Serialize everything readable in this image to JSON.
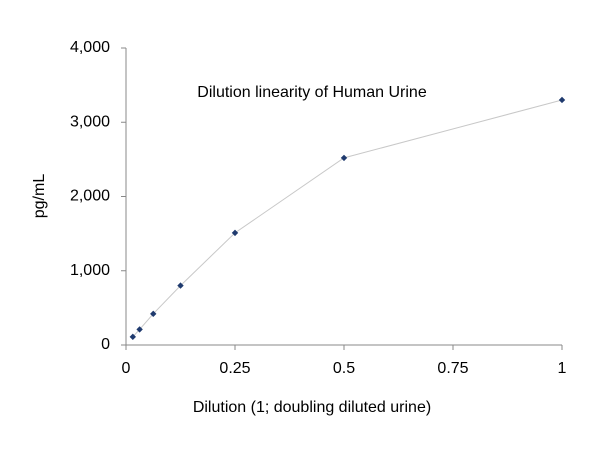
{
  "chart_data": {
    "type": "line",
    "title": "Dilution linearity of Human Urine",
    "x_label": "Dilution (1; doubling diluted urine)",
    "y_label": "pg/mL",
    "x": [
      0.015625,
      0.03125,
      0.0625,
      0.125,
      0.25,
      0.5,
      1
    ],
    "values": [
      110,
      210,
      420,
      800,
      1510,
      2520,
      3300
    ],
    "color": "#1f3a6e",
    "line_color": "#c8c8c8",
    "xlim": [
      0,
      1
    ],
    "xticks": [
      0,
      0.25,
      0.5,
      0.75,
      1
    ],
    "ylim": [
      0,
      4000
    ],
    "yticks": [
      0,
      {
        "value": 1000,
        "label": "1,000"
      },
      {
        "value": 2000,
        "label": "2,000"
      },
      {
        "value": 3000,
        "label": "3,000"
      },
      {
        "value": 4000,
        "label": "4,000"
      }
    ]
  }
}
